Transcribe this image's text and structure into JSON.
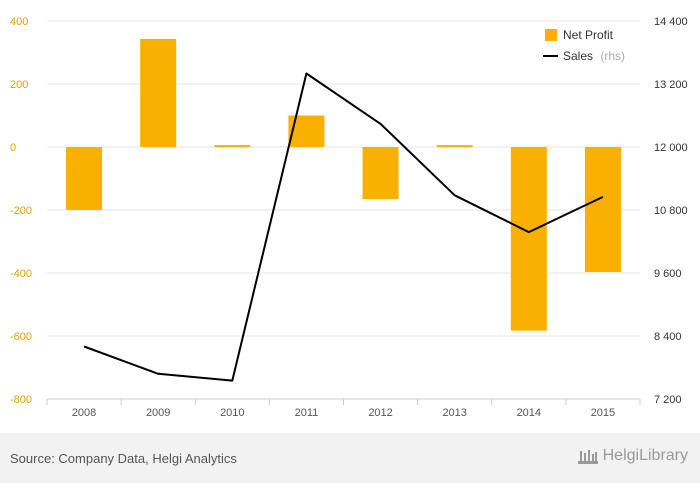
{
  "chart_data": {
    "type": "bar+line",
    "categories": [
      "2008",
      "2009",
      "2010",
      "2011",
      "2012",
      "2013",
      "2014",
      "2015"
    ],
    "series": [
      {
        "name": "Net Profit",
        "type": "bar",
        "axis": "left",
        "color": "#f9b000",
        "values": [
          -200,
          343,
          3,
          100,
          -165,
          3,
          -583,
          -397
        ]
      },
      {
        "name": "Sales",
        "type": "line",
        "axis": "right",
        "color": "#000000",
        "values": [
          8200,
          7680,
          7550,
          13400,
          12440,
          11080,
          10380,
          11050
        ]
      }
    ],
    "y_left": {
      "min": -800,
      "max": 400,
      "ticks": [
        400,
        200,
        0,
        -200,
        -400,
        -600,
        -800
      ],
      "tick_labels": [
        "400",
        "200",
        "0",
        "-200",
        "-400",
        "-600",
        "-800"
      ]
    },
    "y_right": {
      "min": 7200,
      "max": 14400,
      "ticks": [
        14400,
        13200,
        12000,
        10800,
        9600,
        8400,
        7200
      ],
      "tick_labels": [
        "14 400",
        "13 200",
        "12 000",
        "10 800",
        "9 600",
        "8 400",
        "7 200"
      ]
    },
    "legend": [
      {
        "label": "Net Profit",
        "suffix": ""
      },
      {
        "label": "Sales",
        "suffix": "(rhs)"
      }
    ],
    "legend_position": "top-right",
    "grid": true
  },
  "footer": {
    "source": "Source: Company Data, Helgi Analytics",
    "brand": "HelgiLibrary"
  }
}
